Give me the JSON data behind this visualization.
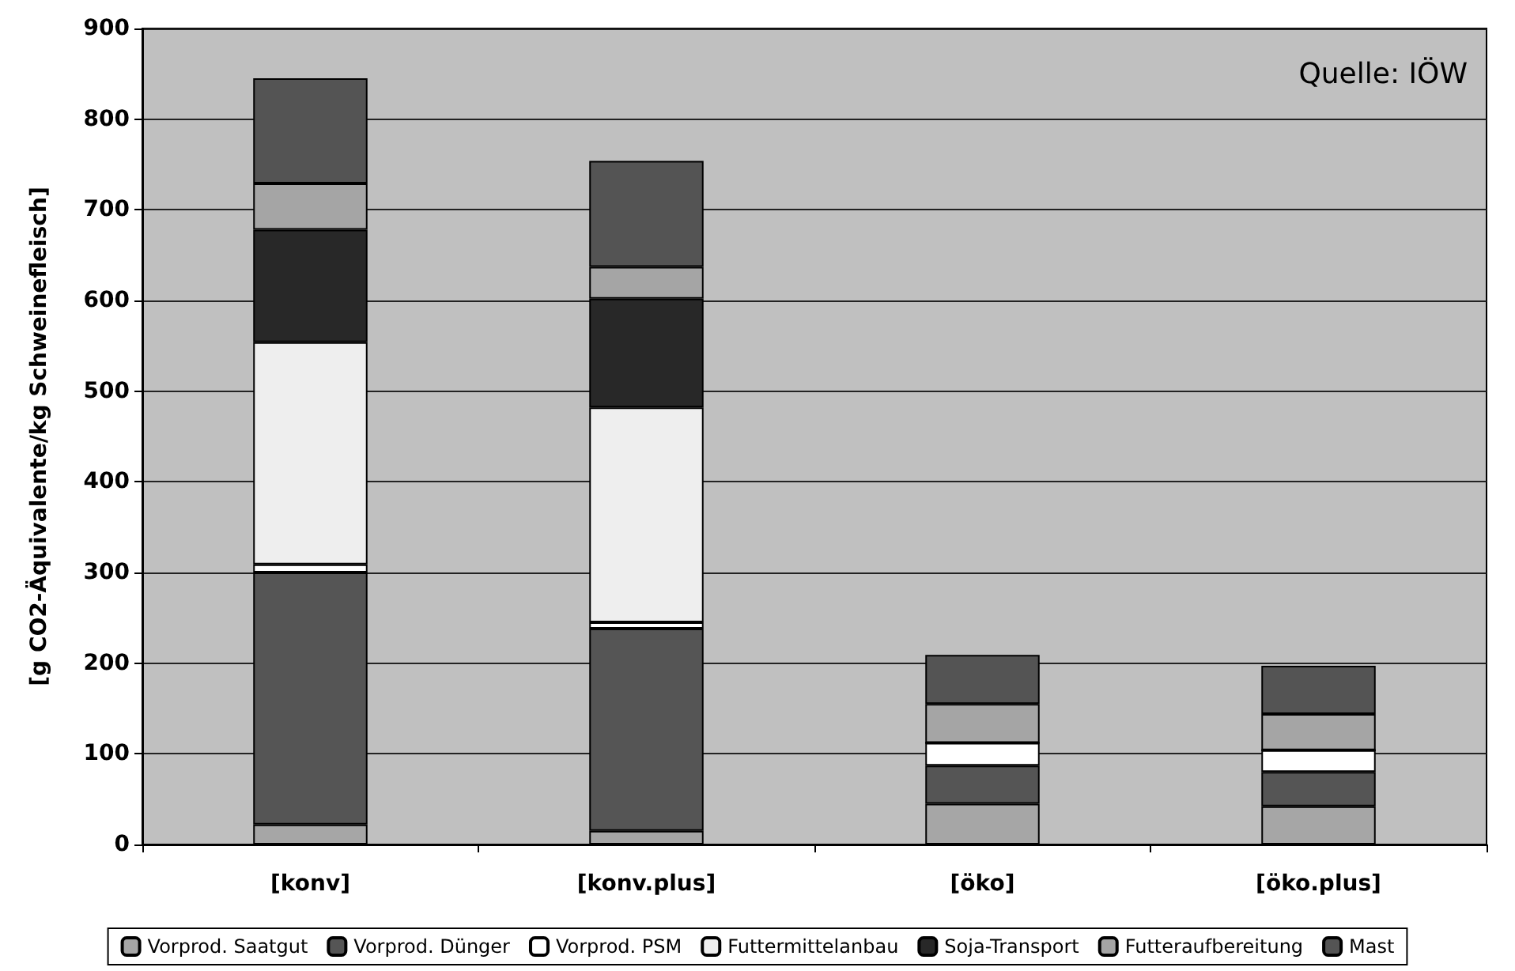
{
  "chart_data": {
    "type": "bar",
    "stacked": true,
    "ylabel": "[g CO2-Äquivalente/kg Schweinefleisch]",
    "categories": [
      "[konv]",
      "[konv.plus]",
      "[öko]",
      "[öko.plus]"
    ],
    "ylim": [
      0,
      900
    ],
    "yticks": [
      0,
      100,
      200,
      300,
      400,
      500,
      600,
      700,
      800,
      900
    ],
    "grid": "y",
    "legend": "bottom",
    "annotations": [
      "Quelle: IÖW"
    ],
    "series": [
      {
        "name": "Vorprod. Saatgut",
        "color": "#a6a6a6",
        "values": [
          22,
          15,
          45,
          42
        ]
      },
      {
        "name": "Vorprod. Dünger",
        "color": "#555555",
        "values": [
          278,
          223,
          42,
          38
        ]
      },
      {
        "name": "Vorprod. PSM",
        "color": "#ffffff",
        "values": [
          9,
          7,
          25,
          24
        ]
      },
      {
        "name": "Futtermittelanbau",
        "color": "#eeeeee",
        "values": [
          245,
          237,
          0,
          0
        ]
      },
      {
        "name": "Soja-Transport",
        "color": "#282828",
        "values": [
          124,
          120,
          0,
          0
        ]
      },
      {
        "name": "Futteraufbereitung",
        "color": "#a5a5a5",
        "values": [
          51,
          35,
          43,
          40
        ]
      },
      {
        "name": "Mast",
        "color": "#545454",
        "values": [
          116,
          117,
          54,
          53
        ]
      }
    ]
  }
}
